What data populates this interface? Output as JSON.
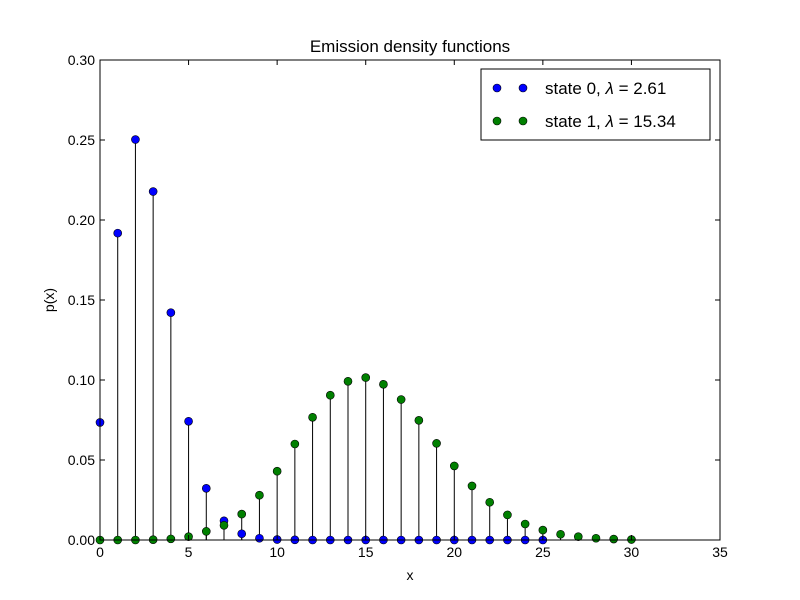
{
  "chart_data": {
    "type": "scatter",
    "subtype": "stem",
    "title": "Emission density functions",
    "xlabel": "x",
    "ylabel": "p(x)",
    "xlim": [
      0,
      35
    ],
    "ylim": [
      0,
      0.3
    ],
    "xticks": [
      "0",
      "5",
      "10",
      "15",
      "20",
      "25",
      "30",
      "35"
    ],
    "yticks": [
      "0.00",
      "0.05",
      "0.10",
      "0.15",
      "0.20",
      "0.25",
      "0.30"
    ],
    "grid": false,
    "legend_position": "top-right",
    "series": [
      {
        "name": "state 0, λ = 2.61",
        "label_prefix": "state 0, ",
        "label_lambda": "λ",
        "label_suffix": " = 2.61",
        "color": "#0000ff",
        "x": [
          0,
          1,
          2,
          3,
          4,
          5,
          6,
          7,
          8,
          9,
          10,
          11,
          12,
          13,
          14,
          15,
          16,
          17,
          18,
          19,
          20,
          21,
          22,
          23,
          24,
          25
        ],
        "values": [
          0.0735,
          0.1918,
          0.2503,
          0.2178,
          0.1421,
          0.0742,
          0.0323,
          0.012,
          0.0039,
          0.0011,
          0.0003,
          0.0001,
          0,
          0,
          0,
          0,
          0,
          0,
          0,
          0,
          0,
          0,
          0,
          0,
          0,
          0
        ]
      },
      {
        "name": "state 1, λ = 15.34",
        "label_prefix": "state 1, ",
        "label_lambda": "λ",
        "label_suffix": " = 15.34",
        "color": "#008000",
        "x": [
          0,
          1,
          2,
          3,
          4,
          5,
          6,
          7,
          8,
          9,
          10,
          11,
          12,
          13,
          14,
          15,
          16,
          17,
          18,
          19,
          20,
          21,
          22,
          23,
          24,
          25,
          26,
          27,
          28,
          29,
          30
        ],
        "values": [
          0,
          0,
          0,
          0.0002,
          0.0007,
          0.0021,
          0.0054,
          0.0092,
          0.0162,
          0.028,
          0.043,
          0.06,
          0.0767,
          0.0905,
          0.0992,
          0.1015,
          0.0973,
          0.0878,
          0.0748,
          0.0604,
          0.0463,
          0.0338,
          0.0236,
          0.0157,
          0.01,
          0.0062,
          0.0036,
          0.0021,
          0.0011,
          0.0006,
          0.0003
        ]
      }
    ]
  }
}
